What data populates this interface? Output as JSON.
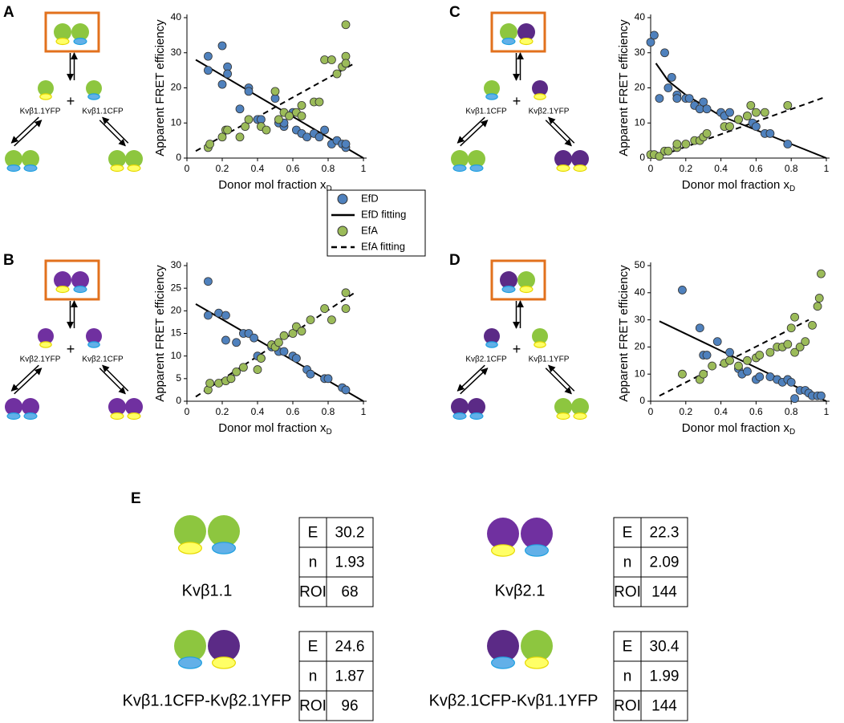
{
  "chart_data": [
    {
      "type": "scatter",
      "xlabel": "Donor mol fraction x",
      "xlabel_subscript": "D",
      "ylabel": "Apparent FRET efficiency",
      "xlim": [
        0,
        1
      ],
      "xticks": [
        0,
        0.2,
        0.4,
        0.6,
        0.8,
        1
      ],
      "ylim": [
        0,
        40
      ],
      "yticks": [
        0,
        10,
        20,
        30,
        40
      ],
      "series": [
        {
          "name": "EfD",
          "color": "#4f81bd",
          "x": [
            0.12,
            0.12,
            0.2,
            0.2,
            0.23,
            0.23,
            0.3,
            0.35,
            0.35,
            0.4,
            0.42,
            0.5,
            0.52,
            0.55,
            0.55,
            0.6,
            0.62,
            0.65,
            0.68,
            0.72,
            0.75,
            0.78,
            0.82,
            0.85,
            0.88,
            0.9,
            0.9
          ],
          "values": [
            29,
            25,
            32,
            21,
            26,
            24,
            14,
            20,
            19,
            11,
            11,
            17,
            10,
            9,
            10,
            13,
            8,
            7,
            6,
            7,
            6,
            8,
            4,
            5,
            4,
            3,
            4
          ]
        },
        {
          "name": "EfD fitting",
          "type": "line",
          "dash": false,
          "color": "#000000",
          "x": [
            0.05,
            1
          ],
          "values": [
            28,
            0
          ]
        },
        {
          "name": "EfA",
          "color": "#9bbb59",
          "x": [
            0.12,
            0.13,
            0.2,
            0.22,
            0.23,
            0.3,
            0.33,
            0.35,
            0.42,
            0.45,
            0.5,
            0.52,
            0.55,
            0.58,
            0.62,
            0.65,
            0.65,
            0.72,
            0.75,
            0.78,
            0.82,
            0.85,
            0.88,
            0.9,
            0.9,
            0.9
          ],
          "values": [
            3,
            4,
            6,
            8,
            8,
            6,
            9,
            11,
            9,
            8,
            19,
            11,
            13,
            12,
            13,
            15,
            12,
            16,
            16,
            28,
            28,
            24,
            26,
            29,
            27,
            38
          ]
        },
        {
          "name": "EfA fitting",
          "type": "line",
          "dash": true,
          "color": "#000000",
          "x": [
            0.05,
            0.95
          ],
          "values": [
            2,
            27
          ]
        }
      ]
    },
    {
      "type": "scatter",
      "xlabel": "Donor mol fraction x",
      "xlabel_subscript": "D",
      "ylabel": "Apparent FRET efficiency",
      "xlim": [
        0,
        1
      ],
      "xticks": [
        0,
        0.2,
        0.4,
        0.6,
        0.8,
        1
      ],
      "ylim": [
        0,
        30
      ],
      "yticks": [
        0,
        5,
        10,
        15,
        20,
        25,
        30
      ],
      "series": [
        {
          "name": "EfD",
          "color": "#4f81bd",
          "x": [
            0.12,
            0.12,
            0.18,
            0.22,
            0.22,
            0.28,
            0.32,
            0.35,
            0.38,
            0.4,
            0.42,
            0.48,
            0.52,
            0.55,
            0.6,
            0.62,
            0.68,
            0.7,
            0.78,
            0.8,
            0.88,
            0.9
          ],
          "values": [
            26.5,
            19,
            19.5,
            19,
            13.5,
            13,
            15,
            15,
            14,
            10,
            9.5,
            12,
            11,
            11,
            10,
            9.5,
            7,
            6,
            5,
            5,
            3,
            2.5
          ]
        },
        {
          "name": "EfD fitting",
          "type": "line",
          "dash": false,
          "color": "#000000",
          "x": [
            0.05,
            1
          ],
          "values": [
            21.5,
            0
          ]
        },
        {
          "name": "EfA",
          "color": "#9bbb59",
          "x": [
            0.12,
            0.13,
            0.18,
            0.22,
            0.25,
            0.28,
            0.32,
            0.4,
            0.42,
            0.48,
            0.5,
            0.52,
            0.55,
            0.6,
            0.62,
            0.65,
            0.7,
            0.78,
            0.82,
            0.9,
            0.9
          ],
          "values": [
            2.5,
            4,
            4,
            4.5,
            5,
            6.5,
            7.5,
            7,
            9.5,
            12.5,
            12,
            13,
            14.5,
            15,
            16.5,
            15.5,
            18,
            20.5,
            18,
            24,
            20.5
          ]
        },
        {
          "name": "EfA fitting",
          "type": "line",
          "dash": true,
          "color": "#000000",
          "x": [
            0.05,
            0.95
          ],
          "values": [
            1,
            24
          ]
        }
      ]
    },
    {
      "type": "scatter",
      "xlabel": "Donor mol fraction x",
      "xlabel_subscript": "D",
      "ylabel": "Apparent FRET efficiency",
      "xlim": [
        0,
        1
      ],
      "xticks": [
        0,
        0.2,
        0.4,
        0.6,
        0.8,
        1
      ],
      "ylim": [
        0,
        40
      ],
      "yticks": [
        0,
        10,
        20,
        30,
        40
      ],
      "series": [
        {
          "name": "EfD",
          "color": "#4f81bd",
          "x": [
            0,
            0.02,
            0.05,
            0.08,
            0.1,
            0.12,
            0.15,
            0.15,
            0.2,
            0.22,
            0.25,
            0.28,
            0.3,
            0.32,
            0.4,
            0.42,
            0.45,
            0.5,
            0.55,
            0.58,
            0.6,
            0.65,
            0.68,
            0.78
          ],
          "values": [
            33,
            35,
            17,
            30,
            20,
            23,
            18,
            17,
            17,
            17,
            15,
            14,
            16,
            14,
            13,
            12,
            13,
            11,
            12,
            10,
            9,
            7,
            7,
            4
          ]
        },
        {
          "name": "EfD fitting",
          "type": "line",
          "dash": false,
          "color": "#000000",
          "x": [
            0.03,
            0.1,
            0.2,
            0.3,
            0.4,
            0.5,
            0.6,
            0.7,
            0.8,
            0.9,
            1
          ],
          "values": [
            27,
            22,
            18,
            15,
            12,
            10,
            8,
            6,
            4,
            2,
            0
          ]
        },
        {
          "name": "EfA",
          "color": "#9bbb59",
          "x": [
            0,
            0.02,
            0.05,
            0.08,
            0.1,
            0.15,
            0.15,
            0.2,
            0.25,
            0.28,
            0.3,
            0.32,
            0.42,
            0.45,
            0.5,
            0.55,
            0.57,
            0.6,
            0.65,
            0.78
          ],
          "values": [
            1,
            1,
            0.5,
            2,
            2,
            3,
            4,
            4,
            5,
            5,
            6,
            7,
            9,
            9,
            11,
            12,
            15,
            13,
            13,
            15
          ]
        },
        {
          "name": "EfA fitting",
          "type": "line",
          "dash": true,
          "color": "#000000",
          "x": [
            0.02,
            1
          ],
          "values": [
            0,
            17.5
          ]
        }
      ]
    },
    {
      "type": "scatter",
      "xlabel": "Donor mol fraction x",
      "xlabel_subscript": "D",
      "ylabel": "Apparent FRET efficiency",
      "xlim": [
        0,
        1
      ],
      "xticks": [
        0,
        0.2,
        0.4,
        0.6,
        0.8,
        1
      ],
      "ylim": [
        0,
        50
      ],
      "yticks": [
        0,
        10,
        20,
        30,
        40,
        50
      ],
      "series": [
        {
          "name": "EfD",
          "color": "#4f81bd",
          "x": [
            0.18,
            0.28,
            0.3,
            0.32,
            0.38,
            0.45,
            0.5,
            0.52,
            0.55,
            0.6,
            0.62,
            0.68,
            0.72,
            0.75,
            0.78,
            0.8,
            0.82,
            0.85,
            0.88,
            0.9,
            0.92,
            0.95,
            0.97
          ],
          "values": [
            41,
            27,
            17,
            17,
            22,
            18,
            12,
            10,
            11,
            8,
            9,
            9,
            8,
            7,
            8,
            7,
            1,
            4,
            4,
            3,
            2,
            2,
            2
          ]
        },
        {
          "name": "EfD fitting",
          "type": "line",
          "dash": false,
          "color": "#000000",
          "x": [
            0.05,
            1
          ],
          "values": [
            29.5,
            0
          ]
        },
        {
          "name": "EfA",
          "color": "#9bbb59",
          "x": [
            0.18,
            0.28,
            0.3,
            0.35,
            0.42,
            0.45,
            0.5,
            0.55,
            0.6,
            0.62,
            0.68,
            0.72,
            0.75,
            0.78,
            0.8,
            0.82,
            0.82,
            0.85,
            0.88,
            0.92,
            0.95,
            0.96,
            0.97
          ],
          "values": [
            10,
            8,
            10,
            13,
            14,
            15,
            13,
            15,
            16,
            17,
            18,
            20,
            20,
            21,
            27,
            31,
            18,
            20,
            22,
            28,
            35,
            38,
            47
          ]
        },
        {
          "name": "EfA fitting",
          "type": "line",
          "dash": true,
          "color": "#000000",
          "x": [
            0.05,
            0.9
          ],
          "values": [
            2,
            30
          ]
        }
      ]
    }
  ],
  "panels": [
    {
      "letter": "A",
      "left_label": "Kvβ1.1YFP",
      "right_label": "Kvβ1.1CFP",
      "plus": "+"
    },
    {
      "letter": "B",
      "left_label": "Kvβ2.1YFP",
      "right_label": "Kvβ2.1CFP",
      "plus": "+"
    },
    {
      "letter": "C",
      "left_label": "Kvβ1.1CFP",
      "right_label": "Kvβ2.1YFP",
      "plus": "+"
    },
    {
      "letter": "D",
      "left_label": "Kvβ2.1CFP",
      "right_label": "Kvβ1.1YFP",
      "plus": "+"
    }
  ],
  "panel_e": {
    "letter": "E",
    "items": [
      {
        "label": "Kvβ1.1",
        "rows": [
          [
            "E",
            30.2
          ],
          [
            "n",
            1.93
          ],
          [
            "ROI",
            68
          ]
        ]
      },
      {
        "label": "Kvβ2.1",
        "rows": [
          [
            "E",
            22.3
          ],
          [
            "n",
            2.09
          ],
          [
            "ROI",
            144
          ]
        ]
      },
      {
        "label": "Kvβ1.1CFP-Kvβ2.1YFP",
        "rows": [
          [
            "E",
            24.6
          ],
          [
            "n",
            1.87
          ],
          [
            "ROI",
            96
          ]
        ]
      },
      {
        "label": "Kvβ2.1CFP-Kvβ1.1YFP",
        "rows": [
          [
            "E",
            30.4
          ],
          [
            "n",
            1.99
          ],
          [
            "ROI",
            144
          ]
        ]
      }
    ]
  }
}
